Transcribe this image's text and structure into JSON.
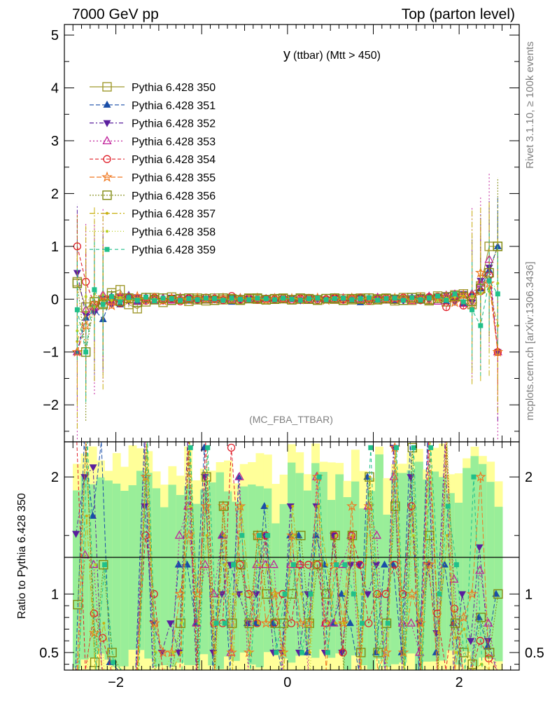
{
  "header": {
    "left": "7000 GeV pp",
    "right": "Top (parton level)"
  },
  "side_labels": {
    "rivet": "Rivet 3.1.10, ≥ 100k events",
    "mcplots": "mcplots.cern.ch [arXiv:1306.3436]"
  },
  "chart_data": {
    "type": "line",
    "title_main": "y",
    "title_sub": "(ttbar) (Mtt > 450)",
    "analysis_label": "(MC_FBA_TTBAR)",
    "xlim": [
      -2.6,
      2.7
    ],
    "ylim": [
      -2.7,
      5.2
    ],
    "ratio_ylim": [
      0.35,
      2.3
    ],
    "ratio_ylabel": "Ratio to Pythia 6.428 350",
    "x_ticks": [
      {
        "v": -2,
        "label": "−2"
      },
      {
        "v": 0,
        "label": "0"
      },
      {
        "v": 2,
        "label": "2"
      }
    ],
    "y_ticks": [
      {
        "v": -2,
        "label": "−2"
      },
      {
        "v": -1,
        "label": "−1"
      },
      {
        "v": 0,
        "label": "0"
      },
      {
        "v": 1,
        "label": "1"
      },
      {
        "v": 2,
        "label": "2"
      },
      {
        "v": 3,
        "label": "3"
      },
      {
        "v": 4,
        "label": "4"
      },
      {
        "v": 5,
        "label": "5"
      }
    ],
    "ratio_ticks": [
      {
        "v": 0.5,
        "label": "0.5"
      },
      {
        "v": 1,
        "label": "1"
      },
      {
        "v": 2,
        "label": "2"
      }
    ],
    "x": [
      -2.45,
      -2.35,
      -2.25,
      -2.15,
      -2.05,
      -1.95,
      -1.85,
      -1.75,
      -1.65,
      -1.55,
      -1.45,
      -1.35,
      -1.25,
      -1.15,
      -1.05,
      -0.95,
      -0.85,
      -0.75,
      -0.65,
      -0.55,
      -0.45,
      -0.35,
      -0.25,
      -0.15,
      -0.05,
      0.05,
      0.15,
      0.25,
      0.35,
      0.45,
      0.55,
      0.65,
      0.75,
      0.85,
      0.95,
      1.05,
      1.15,
      1.25,
      1.35,
      1.45,
      1.55,
      1.65,
      1.75,
      1.85,
      1.95,
      2.05,
      2.15,
      2.25,
      2.35,
      2.45
    ],
    "series": [
      {
        "name": "Pythia 6.428 350",
        "color": "#a09a2e",
        "marker": "square-open",
        "dash": "",
        "values": [
          0.33,
          -0.15,
          -0.12,
          -0.08,
          0.12,
          0.18,
          -0.1,
          -0.18,
          -0.05,
          0.03,
          -0.06,
          0.04,
          0.01,
          -0.04,
          0.02,
          -0.03,
          0.02,
          -0.01,
          0.01,
          -0.02,
          0.02,
          0.0,
          -0.01,
          0.01,
          0.02,
          -0.01,
          0.0,
          0.01,
          -0.02,
          0.01,
          0.0,
          0.01,
          -0.01,
          0.02,
          -0.02,
          0.01,
          0.02,
          -0.03,
          0.03,
          -0.02,
          0.04,
          -0.03,
          0.06,
          -0.05,
          0.08,
          0.1,
          -0.1,
          0.25,
          1.0,
          1.0
        ]
      },
      {
        "name": "Pythia 6.428 351",
        "color": "#1a4ea8",
        "marker": "triangle-up",
        "dash": "6 3",
        "values": [
          -1.0,
          -0.35,
          -0.2,
          -0.38,
          0.05,
          -0.1,
          0.08,
          -0.05,
          0.04,
          -0.02,
          0.03,
          -0.01,
          0.02,
          -0.03,
          0.01,
          0.02,
          -0.02,
          0.01,
          -0.05,
          0.02,
          0.01,
          -0.01,
          0.02,
          0.0,
          -0.02,
          0.01,
          0.02,
          -0.01,
          0.0,
          0.02,
          -0.01,
          0.01,
          -0.02,
          -0.06,
          0.02,
          -0.01,
          0.03,
          -0.02,
          0.01,
          0.04,
          -0.03,
          0.05,
          0.03,
          -0.04,
          0.06,
          -0.08,
          0.12,
          0.2,
          0.55,
          1.0
        ]
      },
      {
        "name": "Pythia 6.428 352",
        "color": "#5a1f9e",
        "marker": "triangle-down",
        "dash": "6 3 2 3",
        "values": [
          0.5,
          -0.3,
          -0.25,
          0.02,
          -0.1,
          0.05,
          -0.03,
          0.04,
          -0.02,
          0.02,
          -0.03,
          0.03,
          -0.01,
          0.02,
          -0.02,
          0.01,
          0.0,
          -0.01,
          0.02,
          -0.02,
          0.01,
          0.0,
          0.01,
          -0.01,
          0.0,
          0.02,
          -0.02,
          0.01,
          0.01,
          -0.01,
          0.02,
          -0.01,
          0.0,
          0.03,
          -0.02,
          0.02,
          -0.01,
          0.02,
          -0.03,
          0.02,
          0.03,
          -0.02,
          0.04,
          0.08,
          -0.05,
          0.1,
          -0.06,
          0.35,
          0.6,
          -1.0
        ]
      },
      {
        "name": "Pythia 6.428 353",
        "color": "#c0209a",
        "marker": "triangle-open",
        "dash": "2 3",
        "values": [
          -1.0,
          -0.2,
          -0.15,
          0.08,
          -0.05,
          0.02,
          0.05,
          -0.04,
          0.03,
          -0.03,
          0.02,
          -0.02,
          0.03,
          -0.01,
          0.01,
          -0.02,
          0.02,
          0.01,
          -0.01,
          0.02,
          -0.01,
          0.01,
          0.0,
          0.02,
          -0.01,
          0.0,
          0.01,
          -0.02,
          0.02,
          0.0,
          -0.01,
          0.02,
          0.01,
          -0.02,
          0.01,
          0.03,
          -0.02,
          0.01,
          0.02,
          -0.03,
          0.02,
          0.05,
          -0.04,
          0.07,
          0.09,
          -0.08,
          0.1,
          0.3,
          0.75,
          -1.0
        ]
      },
      {
        "name": "Pythia 6.428 354",
        "color": "#e0202a",
        "marker": "circle-open",
        "dash": "5 3",
        "values": [
          1.0,
          0.33,
          -0.1,
          -0.05,
          0.02,
          -0.08,
          0.04,
          0.02,
          -0.03,
          0.03,
          -0.02,
          0.01,
          -0.04,
          0.02,
          -0.01,
          0.03,
          0.01,
          -0.02,
          0.06,
          -0.01,
          0.02,
          -0.01,
          0.01,
          0.0,
          0.02,
          -0.02,
          0.01,
          0.02,
          -0.01,
          0.0,
          0.02,
          -0.01,
          0.01,
          0.03,
          -0.03,
          0.01,
          0.02,
          -0.02,
          0.03,
          0.01,
          -0.02,
          0.04,
          0.05,
          -0.15,
          0.07,
          -0.12,
          0.06,
          0.15,
          0.45,
          -1.0
        ]
      },
      {
        "name": "Pythia 6.428 355",
        "color": "#f07820",
        "marker": "star-open",
        "dash": "7 3",
        "values": [
          -1.0,
          -0.5,
          -0.08,
          0.04,
          -0.12,
          0.06,
          -0.02,
          0.05,
          -0.01,
          0.02,
          -0.03,
          0.02,
          0.01,
          -0.02,
          0.02,
          0.0,
          -0.01,
          0.02,
          -0.01,
          0.01,
          0.0,
          0.02,
          -0.02,
          0.01,
          0.0,
          0.01,
          -0.01,
          0.0,
          0.02,
          -0.02,
          0.01,
          0.0,
          0.02,
          -0.01,
          0.01,
          -0.02,
          0.0,
          0.02,
          0.01,
          -0.02,
          0.03,
          -0.02,
          0.02,
          0.05,
          -0.06,
          0.08,
          -0.1,
          0.5,
          0.3,
          -1.0
        ]
      },
      {
        "name": "Pythia 6.428 356",
        "color": "#808a10",
        "marker": "square-open",
        "dash": "2 2",
        "values": [
          0.3,
          -1.0,
          -0.05,
          -0.1,
          0.06,
          -0.04,
          0.02,
          -0.06,
          0.03,
          -0.01,
          0.02,
          -0.02,
          0.0,
          0.02,
          -0.01,
          0.01,
          -0.02,
          0.02,
          0.0,
          -0.01,
          0.01,
          0.02,
          -0.01,
          0.0,
          0.01,
          -0.01,
          0.02,
          0.0,
          -0.01,
          0.01,
          0.02,
          -0.02,
          0.01,
          0.0,
          0.02,
          -0.01,
          0.01,
          0.0,
          -0.02,
          0.03,
          0.01,
          -0.01,
          0.02,
          0.04,
          0.06,
          0.05,
          -0.04,
          0.2,
          0.5,
          1.0
        ]
      },
      {
        "name": "Pythia 6.428 357",
        "color": "#c8b010",
        "marker": "dot",
        "dash": "8 3 2 3",
        "values": [
          -0.8,
          -0.25,
          0.1,
          -0.06,
          0.04,
          0.02,
          -0.03,
          0.01,
          0.02,
          -0.02,
          0.01,
          0.0,
          -0.01,
          0.02,
          0.01,
          -0.01,
          0.0,
          0.01,
          -0.02,
          0.01,
          0.02,
          -0.01,
          0.0,
          0.01,
          -0.01,
          0.02,
          0.0,
          -0.01,
          0.01,
          0.02,
          -0.01,
          0.0,
          0.01,
          -0.01,
          0.02,
          0.01,
          -0.02,
          0.02,
          0.0,
          0.01,
          -0.02,
          0.03,
          0.04,
          -0.03,
          0.05,
          0.07,
          0.04,
          0.1,
          0.2,
          -0.5
        ]
      },
      {
        "name": "Pythia 6.428 358",
        "color": "#b8d020",
        "marker": "dot",
        "dash": "1 3",
        "values": [
          -0.6,
          0.05,
          -0.15,
          0.08,
          -0.02,
          0.03,
          0.01,
          -0.02,
          0.03,
          0.01,
          -0.01,
          0.02,
          0.0,
          -0.01,
          0.01,
          0.02,
          -0.01,
          0.0,
          0.01,
          -0.02,
          0.0,
          0.01,
          0.02,
          -0.01,
          0.0,
          0.01,
          0.0,
          -0.02,
          0.01,
          0.0,
          0.02,
          0.01,
          -0.01,
          0.02,
          0.0,
          -0.01,
          0.01,
          0.02,
          -0.01,
          0.0,
          0.02,
          0.03,
          -0.02,
          0.02,
          0.04,
          -0.03,
          0.06,
          0.1,
          0.15,
          0.3
        ]
      },
      {
        "name": "Pythia 6.428 359",
        "color": "#20c08a",
        "marker": "square",
        "dash": "5 4",
        "values": [
          -0.2,
          -1.0,
          0.18,
          -0.1,
          0.05,
          -0.05,
          0.03,
          -0.02,
          0.04,
          -0.03,
          0.02,
          0.01,
          -0.02,
          0.01,
          -0.01,
          0.02,
          0.01,
          -0.02,
          0.02,
          0.0,
          -0.01,
          0.02,
          0.01,
          -0.01,
          0.02,
          0.0,
          -0.02,
          0.01,
          0.02,
          -0.01,
          0.01,
          0.02,
          -0.01,
          0.01,
          0.03,
          -0.02,
          0.01,
          0.02,
          -0.02,
          0.03,
          -0.01,
          0.02,
          0.06,
          -0.02,
          0.1,
          -0.05,
          -0.2,
          -0.5,
          0.35,
          0.1
        ]
      }
    ]
  }
}
